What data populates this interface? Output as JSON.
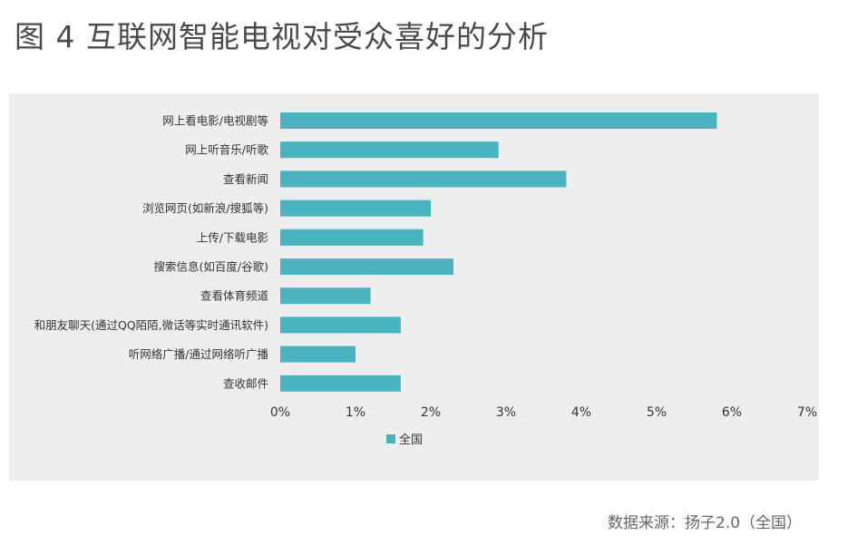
{
  "title": "图 4  互联网智能电视对受众喜好的分析",
  "source": "数据来源：扬子2.0（全国）",
  "colors": {
    "bar": "#4ab3c0",
    "panel": "#eeeeee",
    "text": "#333333"
  },
  "chart_data": {
    "type": "bar",
    "orientation": "horizontal",
    "categories": [
      "网上看电影/电视剧等",
      "网上听音乐/听歌",
      "查看新闻",
      "浏览网页(如新浪/搜狐等)",
      "上传/下载电影",
      "搜索信息(如百度/谷歌)",
      "查看体育频道",
      "和朋友聊天(通过QQ陌陌,微话等实时通讯软件)",
      "听网络广播/通过网络听广播",
      "查收邮件"
    ],
    "series": [
      {
        "name": "全国",
        "values": [
          5.8,
          2.9,
          3.8,
          2.0,
          1.9,
          2.3,
          1.2,
          1.6,
          1.0,
          1.6
        ]
      }
    ],
    "xlim": [
      0,
      7
    ],
    "xticks": [
      "0%",
      "1%",
      "2%",
      "3%",
      "4%",
      "5%",
      "6%",
      "7%"
    ],
    "legend_position": "bottom-left",
    "grid": false
  }
}
